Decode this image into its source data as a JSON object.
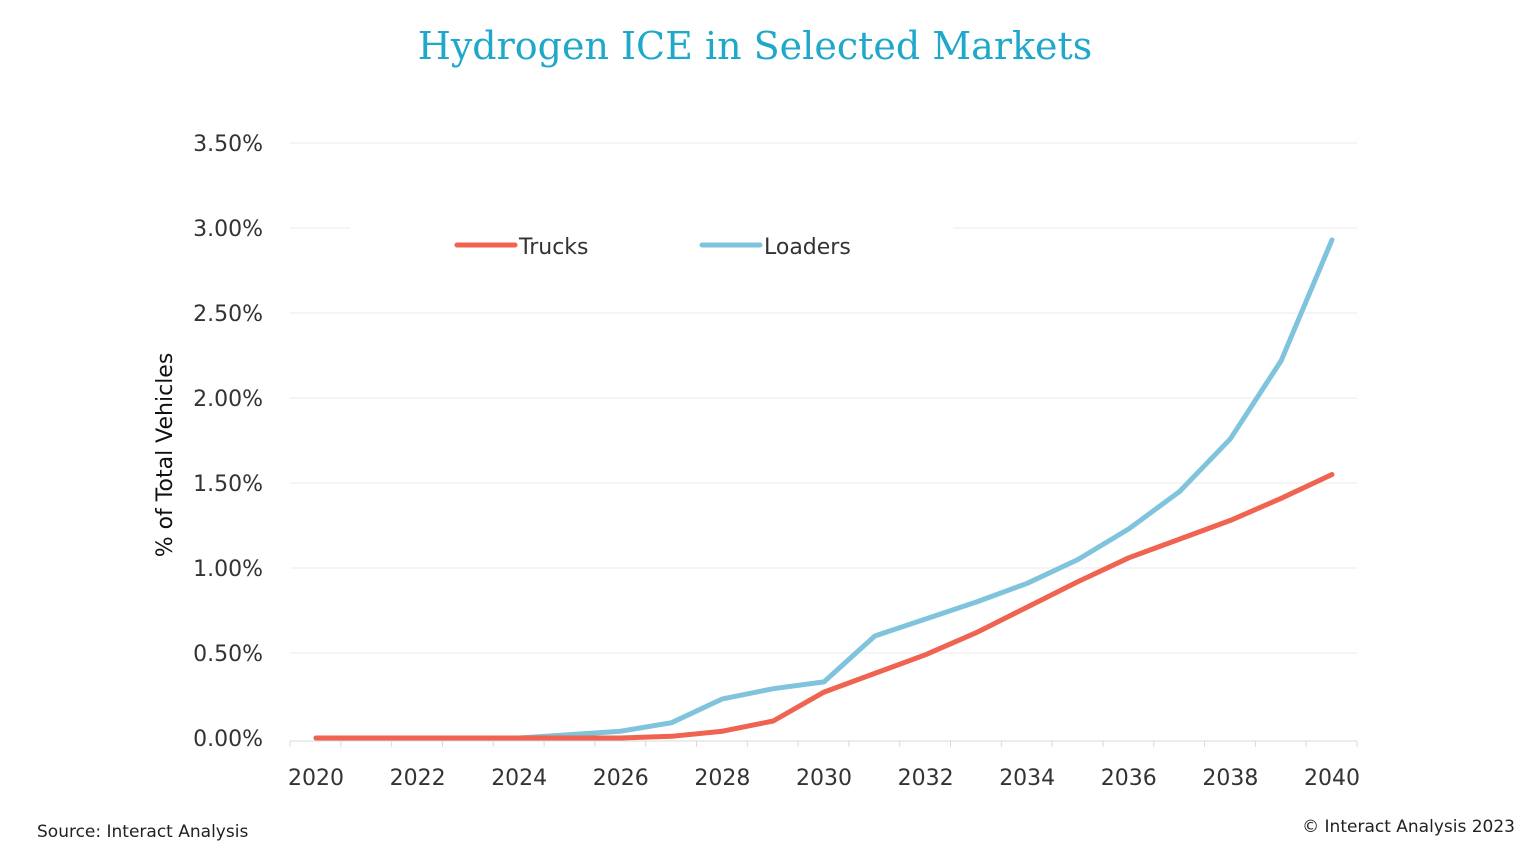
{
  "chart_data": {
    "type": "line",
    "title": "Hydrogen ICE in Selected Markets",
    "xlabel": "",
    "ylabel": "% of Total Vehicles",
    "x": [
      2020,
      2021,
      2022,
      2023,
      2024,
      2025,
      2026,
      2027,
      2028,
      2029,
      2030,
      2031,
      2032,
      2033,
      2034,
      2035,
      2036,
      2037,
      2038,
      2039,
      2040
    ],
    "xticks": [
      "2020",
      "2022",
      "2024",
      "2026",
      "2028",
      "2030",
      "2032",
      "2034",
      "2036",
      "2038",
      "2040"
    ],
    "yticks": [
      "0.00%",
      "0.50%",
      "1.00%",
      "1.50%",
      "2.00%",
      "2.50%",
      "3.00%",
      "3.50%"
    ],
    "ylim": [
      0,
      3.5
    ],
    "xlim": [
      2020,
      2040
    ],
    "grid": "horizontal",
    "legend_position": "top",
    "series": [
      {
        "name": "Trucks",
        "color": "#ef6350",
        "values": [
          0,
          0,
          0,
          0,
          0,
          0,
          0,
          0.01,
          0.04,
          0.1,
          0.27,
          0.38,
          0.49,
          0.62,
          0.77,
          0.92,
          1.06,
          1.17,
          1.28,
          1.41,
          1.55
        ]
      },
      {
        "name": "Loaders",
        "color": "#7fc3dc",
        "values": [
          0,
          0,
          0,
          0,
          0,
          0.02,
          0.04,
          0.09,
          0.23,
          0.29,
          0.33,
          0.6,
          0.7,
          0.8,
          0.91,
          1.05,
          1.23,
          1.45,
          1.76,
          2.22,
          2.93
        ]
      }
    ]
  },
  "footer": {
    "source": "Source: Interact Analysis",
    "copyright": "© Interact Analysis 2023"
  }
}
